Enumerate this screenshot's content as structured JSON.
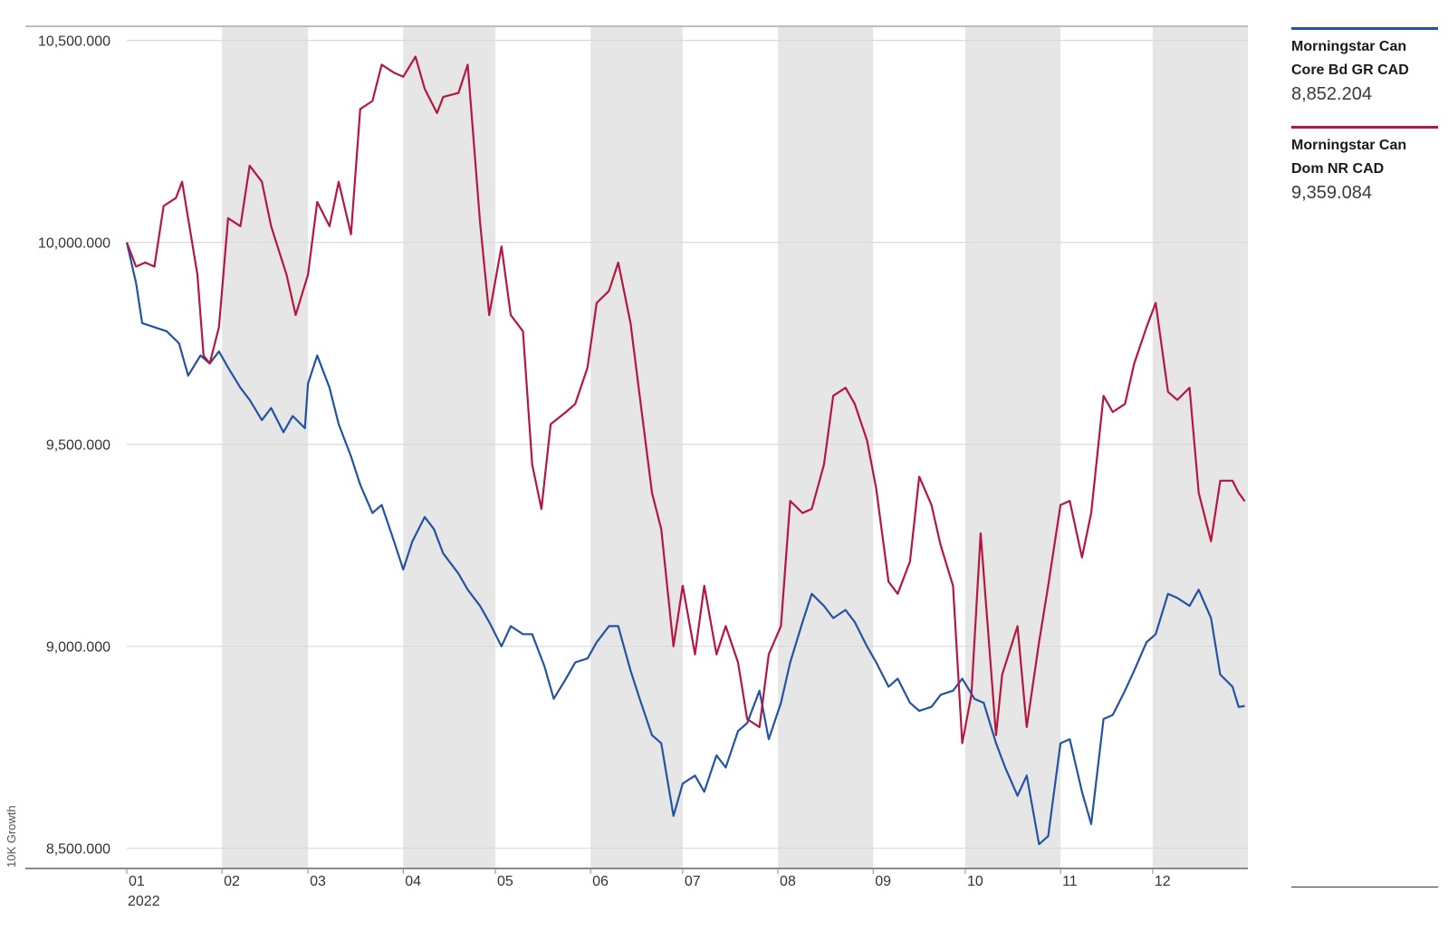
{
  "chart_data": {
    "type": "line",
    "ylabel": "10K Growth",
    "ylim": [
      8450000,
      10535000
    ],
    "yticks": [
      {
        "value": 10500000,
        "label": "10,500.000"
      },
      {
        "value": 10000000,
        "label": "10,000.000"
      },
      {
        "value": 9500000,
        "label": "9,500.000"
      },
      {
        "value": 9000000,
        "label": "9,000.000"
      },
      {
        "value": 8500000,
        "label": "8,500.000"
      }
    ],
    "xaxis": {
      "year_label": "2022",
      "month_labels": [
        "01",
        "02",
        "03",
        "04",
        "05",
        "06",
        "07",
        "08",
        "09",
        "10",
        "11",
        "12"
      ],
      "shaded_months": [
        "02",
        "04",
        "06",
        "08",
        "10",
        "12"
      ]
    },
    "grid": true,
    "legend_position": "right",
    "series": [
      {
        "name": "Morningstar Can Core Bd GR CAD",
        "display_name_lines": [
          "Morningstar Can",
          "Core Bd GR CAD"
        ],
        "last_value": "8,852.204",
        "color": "#2553a3",
        "points": [
          [
            "2022-01-01",
            10000000
          ],
          [
            "2022-01-04",
            9900000
          ],
          [
            "2022-01-06",
            9800000
          ],
          [
            "2022-01-10",
            9790000
          ],
          [
            "2022-01-14",
            9780000
          ],
          [
            "2022-01-18",
            9750000
          ],
          [
            "2022-01-21",
            9670000
          ],
          [
            "2022-01-25",
            9720000
          ],
          [
            "2022-01-28",
            9700000
          ],
          [
            "2022-01-31",
            9730000
          ],
          [
            "2022-02-03",
            9690000
          ],
          [
            "2022-02-07",
            9640000
          ],
          [
            "2022-02-10",
            9610000
          ],
          [
            "2022-02-14",
            9560000
          ],
          [
            "2022-02-17",
            9590000
          ],
          [
            "2022-02-21",
            9530000
          ],
          [
            "2022-02-24",
            9570000
          ],
          [
            "2022-02-28",
            9540000
          ],
          [
            "2022-03-01",
            9650000
          ],
          [
            "2022-03-04",
            9720000
          ],
          [
            "2022-03-08",
            9640000
          ],
          [
            "2022-03-11",
            9550000
          ],
          [
            "2022-03-15",
            9470000
          ],
          [
            "2022-03-18",
            9400000
          ],
          [
            "2022-03-22",
            9330000
          ],
          [
            "2022-03-25",
            9350000
          ],
          [
            "2022-03-29",
            9260000
          ],
          [
            "2022-04-01",
            9190000
          ],
          [
            "2022-04-04",
            9260000
          ],
          [
            "2022-04-08",
            9320000
          ],
          [
            "2022-04-11",
            9290000
          ],
          [
            "2022-04-14",
            9230000
          ],
          [
            "2022-04-19",
            9180000
          ],
          [
            "2022-04-22",
            9140000
          ],
          [
            "2022-04-26",
            9100000
          ],
          [
            "2022-04-29",
            9060000
          ],
          [
            "2022-05-03",
            9000000
          ],
          [
            "2022-05-06",
            9050000
          ],
          [
            "2022-05-10",
            9030000
          ],
          [
            "2022-05-13",
            9030000
          ],
          [
            "2022-05-17",
            8950000
          ],
          [
            "2022-05-20",
            8870000
          ],
          [
            "2022-05-24",
            8920000
          ],
          [
            "2022-05-27",
            8960000
          ],
          [
            "2022-05-31",
            8970000
          ],
          [
            "2022-06-03",
            9010000
          ],
          [
            "2022-06-07",
            9050000
          ],
          [
            "2022-06-10",
            9050000
          ],
          [
            "2022-06-14",
            8940000
          ],
          [
            "2022-06-17",
            8870000
          ],
          [
            "2022-06-21",
            8780000
          ],
          [
            "2022-06-24",
            8760000
          ],
          [
            "2022-06-28",
            8580000
          ],
          [
            "2022-07-01",
            8660000
          ],
          [
            "2022-07-05",
            8680000
          ],
          [
            "2022-07-08",
            8640000
          ],
          [
            "2022-07-12",
            8730000
          ],
          [
            "2022-07-15",
            8700000
          ],
          [
            "2022-07-19",
            8790000
          ],
          [
            "2022-07-22",
            8810000
          ],
          [
            "2022-07-26",
            8890000
          ],
          [
            "2022-07-29",
            8770000
          ],
          [
            "2022-08-02",
            8860000
          ],
          [
            "2022-08-05",
            8960000
          ],
          [
            "2022-08-09",
            9060000
          ],
          [
            "2022-08-12",
            9130000
          ],
          [
            "2022-08-16",
            9100000
          ],
          [
            "2022-08-19",
            9070000
          ],
          [
            "2022-08-23",
            9090000
          ],
          [
            "2022-08-26",
            9060000
          ],
          [
            "2022-08-30",
            9000000
          ],
          [
            "2022-09-02",
            8960000
          ],
          [
            "2022-09-06",
            8900000
          ],
          [
            "2022-09-09",
            8920000
          ],
          [
            "2022-09-13",
            8860000
          ],
          [
            "2022-09-16",
            8840000
          ],
          [
            "2022-09-20",
            8850000
          ],
          [
            "2022-09-23",
            8880000
          ],
          [
            "2022-09-27",
            8890000
          ],
          [
            "2022-09-30",
            8920000
          ],
          [
            "2022-10-04",
            8870000
          ],
          [
            "2022-10-07",
            8860000
          ],
          [
            "2022-10-11",
            8760000
          ],
          [
            "2022-10-14",
            8700000
          ],
          [
            "2022-10-18",
            8630000
          ],
          [
            "2022-10-21",
            8680000
          ],
          [
            "2022-10-25",
            8510000
          ],
          [
            "2022-10-28",
            8530000
          ],
          [
            "2022-11-01",
            8760000
          ],
          [
            "2022-11-04",
            8770000
          ],
          [
            "2022-11-08",
            8640000
          ],
          [
            "2022-11-11",
            8560000
          ],
          [
            "2022-11-15",
            8820000
          ],
          [
            "2022-11-18",
            8830000
          ],
          [
            "2022-11-22",
            8890000
          ],
          [
            "2022-11-25",
            8940000
          ],
          [
            "2022-11-29",
            9010000
          ],
          [
            "2022-12-02",
            9030000
          ],
          [
            "2022-12-06",
            9130000
          ],
          [
            "2022-12-09",
            9120000
          ],
          [
            "2022-12-13",
            9100000
          ],
          [
            "2022-12-16",
            9140000
          ],
          [
            "2022-12-20",
            9070000
          ],
          [
            "2022-12-23",
            8930000
          ],
          [
            "2022-12-27",
            8900000
          ],
          [
            "2022-12-29",
            8850000
          ],
          [
            "2022-12-31",
            8852204
          ]
        ]
      },
      {
        "name": "Morningstar Can Dom NR CAD",
        "display_name_lines": [
          "Morningstar Can",
          "Dom NR CAD"
        ],
        "last_value": "9,359.084",
        "color": "#b4173f",
        "points": [
          [
            "2022-01-01",
            10000000
          ],
          [
            "2022-01-04",
            9940000
          ],
          [
            "2022-01-07",
            9950000
          ],
          [
            "2022-01-10",
            9940000
          ],
          [
            "2022-01-13",
            10090000
          ],
          [
            "2022-01-17",
            10110000
          ],
          [
            "2022-01-19",
            10150000
          ],
          [
            "2022-01-24",
            9920000
          ],
          [
            "2022-01-26",
            9720000
          ],
          [
            "2022-01-28",
            9700000
          ],
          [
            "2022-01-31",
            9790000
          ],
          [
            "2022-02-03",
            10060000
          ],
          [
            "2022-02-07",
            10040000
          ],
          [
            "2022-02-10",
            10190000
          ],
          [
            "2022-02-14",
            10150000
          ],
          [
            "2022-02-17",
            10040000
          ],
          [
            "2022-02-22",
            9920000
          ],
          [
            "2022-02-25",
            9820000
          ],
          [
            "2022-03-01",
            9920000
          ],
          [
            "2022-03-04",
            10100000
          ],
          [
            "2022-03-08",
            10040000
          ],
          [
            "2022-03-11",
            10150000
          ],
          [
            "2022-03-15",
            10020000
          ],
          [
            "2022-03-18",
            10330000
          ],
          [
            "2022-03-22",
            10350000
          ],
          [
            "2022-03-25",
            10440000
          ],
          [
            "2022-03-29",
            10420000
          ],
          [
            "2022-04-01",
            10410000
          ],
          [
            "2022-04-05",
            10460000
          ],
          [
            "2022-04-08",
            10380000
          ],
          [
            "2022-04-12",
            10320000
          ],
          [
            "2022-04-14",
            10360000
          ],
          [
            "2022-04-19",
            10370000
          ],
          [
            "2022-04-22",
            10440000
          ],
          [
            "2022-04-26",
            10050000
          ],
          [
            "2022-04-29",
            9820000
          ],
          [
            "2022-05-03",
            9990000
          ],
          [
            "2022-05-06",
            9820000
          ],
          [
            "2022-05-10",
            9780000
          ],
          [
            "2022-05-13",
            9450000
          ],
          [
            "2022-05-16",
            9340000
          ],
          [
            "2022-05-19",
            9550000
          ],
          [
            "2022-05-24",
            9580000
          ],
          [
            "2022-05-27",
            9600000
          ],
          [
            "2022-05-31",
            9690000
          ],
          [
            "2022-06-03",
            9850000
          ],
          [
            "2022-06-07",
            9880000
          ],
          [
            "2022-06-10",
            9950000
          ],
          [
            "2022-06-14",
            9800000
          ],
          [
            "2022-06-17",
            9620000
          ],
          [
            "2022-06-21",
            9380000
          ],
          [
            "2022-06-24",
            9290000
          ],
          [
            "2022-06-28",
            9000000
          ],
          [
            "2022-07-01",
            9150000
          ],
          [
            "2022-07-05",
            8980000
          ],
          [
            "2022-07-08",
            9150000
          ],
          [
            "2022-07-12",
            8980000
          ],
          [
            "2022-07-15",
            9050000
          ],
          [
            "2022-07-19",
            8960000
          ],
          [
            "2022-07-22",
            8820000
          ],
          [
            "2022-07-26",
            8800000
          ],
          [
            "2022-07-29",
            8980000
          ],
          [
            "2022-08-02",
            9050000
          ],
          [
            "2022-08-05",
            9360000
          ],
          [
            "2022-08-09",
            9330000
          ],
          [
            "2022-08-12",
            9340000
          ],
          [
            "2022-08-16",
            9450000
          ],
          [
            "2022-08-19",
            9620000
          ],
          [
            "2022-08-23",
            9640000
          ],
          [
            "2022-08-26",
            9600000
          ],
          [
            "2022-08-30",
            9510000
          ],
          [
            "2022-09-02",
            9390000
          ],
          [
            "2022-09-06",
            9160000
          ],
          [
            "2022-09-09",
            9130000
          ],
          [
            "2022-09-13",
            9210000
          ],
          [
            "2022-09-16",
            9420000
          ],
          [
            "2022-09-20",
            9350000
          ],
          [
            "2022-09-23",
            9250000
          ],
          [
            "2022-09-27",
            9150000
          ],
          [
            "2022-09-30",
            8760000
          ],
          [
            "2022-10-03",
            8880000
          ],
          [
            "2022-10-06",
            9280000
          ],
          [
            "2022-10-11",
            8780000
          ],
          [
            "2022-10-13",
            8930000
          ],
          [
            "2022-10-18",
            9050000
          ],
          [
            "2022-10-21",
            8800000
          ],
          [
            "2022-10-25",
            9010000
          ],
          [
            "2022-10-28",
            9150000
          ],
          [
            "2022-11-01",
            9350000
          ],
          [
            "2022-11-04",
            9360000
          ],
          [
            "2022-11-08",
            9220000
          ],
          [
            "2022-11-11",
            9330000
          ],
          [
            "2022-11-15",
            9620000
          ],
          [
            "2022-11-18",
            9580000
          ],
          [
            "2022-11-22",
            9600000
          ],
          [
            "2022-11-25",
            9700000
          ],
          [
            "2022-11-29",
            9790000
          ],
          [
            "2022-12-02",
            9850000
          ],
          [
            "2022-12-06",
            9630000
          ],
          [
            "2022-12-09",
            9610000
          ],
          [
            "2022-12-13",
            9640000
          ],
          [
            "2022-12-16",
            9380000
          ],
          [
            "2022-12-20",
            9260000
          ],
          [
            "2022-12-23",
            9410000
          ],
          [
            "2022-12-27",
            9410000
          ],
          [
            "2022-12-29",
            9380000
          ],
          [
            "2022-12-31",
            9359084
          ]
        ]
      }
    ]
  }
}
